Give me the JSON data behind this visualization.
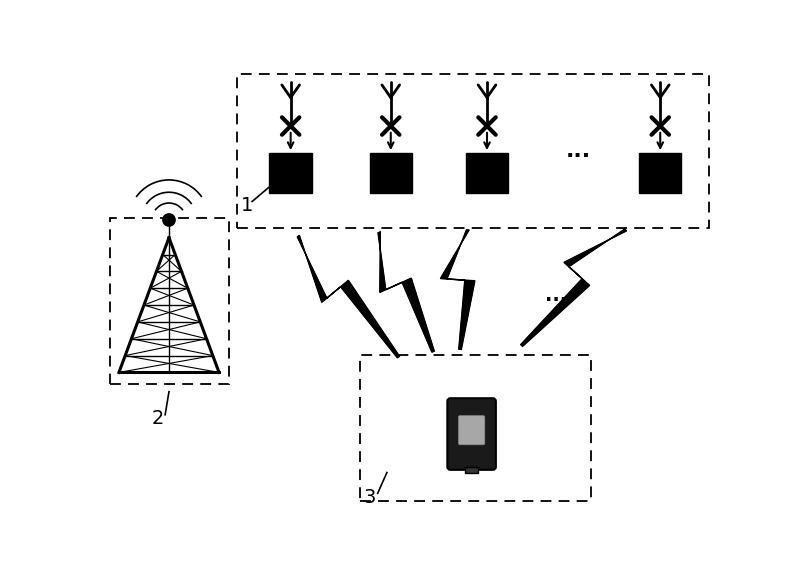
{
  "bg_color": "#ffffff",
  "box1_label": "1",
  "box2_label": "2",
  "box3_label": "3",
  "dots_label": "..."
}
